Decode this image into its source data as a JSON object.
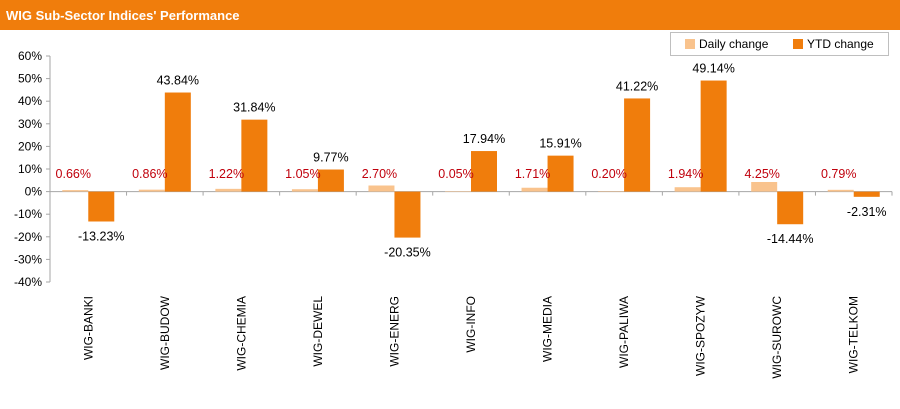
{
  "title": "WIG Sub-Sector Indices' Performance",
  "colors": {
    "daily": "#f9c38d",
    "ytd": "#f07d0c",
    "header": "#f07d0c",
    "daily_label": "#c0000c",
    "ytd_label": "#000000"
  },
  "chart_data": {
    "type": "bar",
    "categories": [
      "WIG-BANKI",
      "WIG-BUDOW",
      "WIG-CHEMIA",
      "WIG-DEWEL",
      "WIG-ENERG",
      "WIG-INFO",
      "WIG-MEDIA",
      "WIG-PALIWA",
      "WIG-SPOZYW",
      "WIG-SUROWC",
      "WIG-TELKOM"
    ],
    "series": [
      {
        "name": "Daily change",
        "values": [
          0.66,
          0.86,
          1.22,
          1.05,
          2.7,
          0.05,
          1.71,
          0.2,
          1.94,
          4.25,
          0.79
        ],
        "labels": [
          "0.66%",
          "0.86%",
          "1.22%",
          "1.05%",
          "2.70%",
          "0.05%",
          "1.71%",
          "0.20%",
          "1.94%",
          "4.25%",
          "0.79%"
        ]
      },
      {
        "name": "YTD change",
        "values": [
          -13.23,
          43.84,
          31.84,
          9.77,
          -20.35,
          17.94,
          15.91,
          41.22,
          49.14,
          -14.44,
          -2.31
        ],
        "labels": [
          "-13.23%",
          "43.84%",
          "31.84%",
          "9.77%",
          "-20.35%",
          "17.94%",
          "15.91%",
          "41.22%",
          "49.14%",
          "-14.44%",
          "-2.31%"
        ]
      }
    ],
    "ylim": [
      -40,
      60
    ],
    "yticks": [
      60,
      50,
      40,
      30,
      20,
      10,
      0,
      -10,
      -20,
      -30,
      -40
    ],
    "ytick_labels": [
      "60%",
      "50%",
      "40%",
      "30%",
      "20%",
      "10%",
      "0%",
      "-10%",
      "-20%",
      "-30%",
      "-40%"
    ],
    "grid": false,
    "legend_position": "top-right"
  }
}
